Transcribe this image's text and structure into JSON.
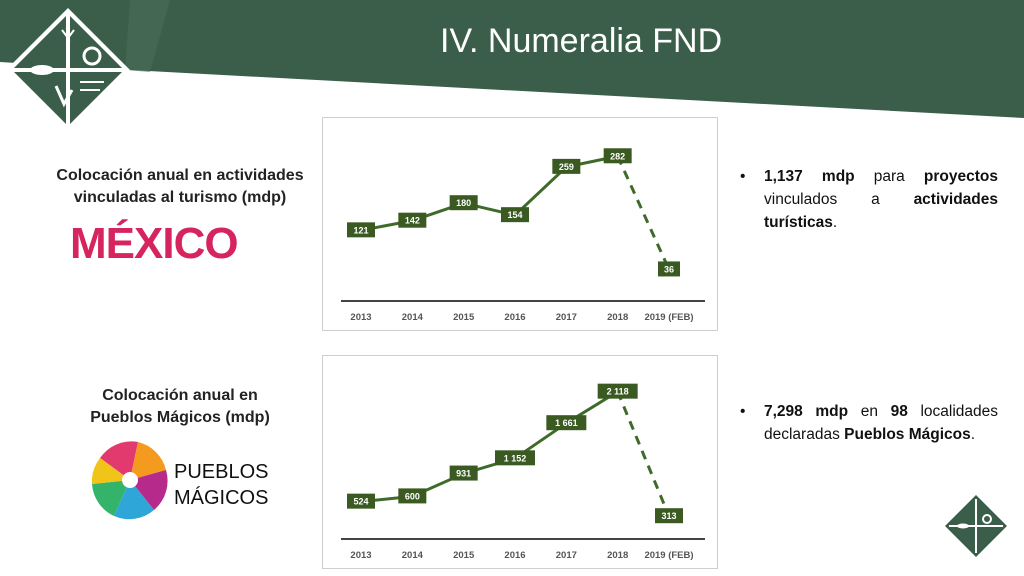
{
  "title": "IV. Numeralia FND",
  "colors": {
    "brand_green": "#3a5e49",
    "line_green": "#3f6b2a",
    "label_bg": "#3a5a22"
  },
  "section1": {
    "label_line1": "Colocación anual en actividades",
    "label_line2": "vinculadas al turismo (mdp)",
    "logo_text": "MÉXICO",
    "bullet": {
      "b1": "1,137 mdp",
      "t1": " para ",
      "b2": "proyectos",
      "t2": " vinculados a ",
      "b3": "actividades turísticas",
      "t3": "."
    }
  },
  "section2": {
    "label_line1": "Colocación anual en",
    "label_line2": "Pueblos Mágicos (mdp)",
    "logo_line1": "PUEBLOS",
    "logo_line2": "MÁGICOS",
    "bullet": {
      "b1": "7,298 mdp",
      "t1": " en ",
      "b2": "98",
      "t2": " localidades declaradas ",
      "b3": "Pueblos Mágicos",
      "t3": "."
    }
  },
  "chart_data": [
    {
      "type": "line",
      "categories": [
        "2013",
        "2014",
        "2015",
        "2016",
        "2017",
        "2018",
        "2019 (FEB)"
      ],
      "values": [
        121,
        142,
        180,
        154,
        259,
        282,
        36
      ],
      "labels": [
        "121",
        "142",
        "180",
        "154",
        "259",
        "282",
        "36"
      ],
      "dashed_last_segment": true,
      "ylim": [
        0,
        300
      ],
      "grid": false
    },
    {
      "type": "line",
      "categories": [
        "2013",
        "2014",
        "2015",
        "2016",
        "2017",
        "2018",
        "2019 (FEB)"
      ],
      "values": [
        524,
        600,
        931,
        1152,
        1661,
        2118,
        313
      ],
      "labels": [
        "524",
        "600",
        "931",
        "1 152",
        "1 661",
        "2 118",
        "313"
      ],
      "dashed_last_segment": true,
      "ylim": [
        200,
        2200
      ],
      "grid": false
    }
  ]
}
